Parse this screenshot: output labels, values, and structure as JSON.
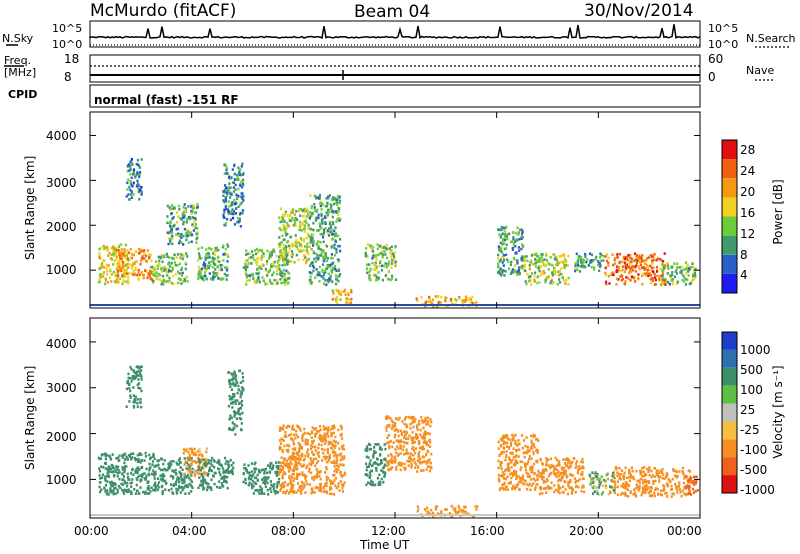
{
  "header": {
    "station": "McMurdo (fitACF)",
    "beam": "Beam 04",
    "date": "30/Nov/2014"
  },
  "noise_panel": {
    "left_label": "N.Sky",
    "right_label": "N.Search",
    "ticks_left": [
      "10^5",
      "10^0"
    ],
    "ticks_right": [
      "10^5",
      "10^0"
    ]
  },
  "freq_panel": {
    "left_label_1": "Freq.",
    "left_label_2": "[MHz]",
    "right_label": "Nave",
    "ticks_left": [
      "18",
      "8"
    ],
    "ticks_right": [
      "60",
      "0"
    ]
  },
  "cpid": {
    "label": "CPID",
    "mode": "normal (fast) -151 RF"
  },
  "x_axis": {
    "label": "Time UT",
    "ticks": [
      "00:00",
      "04:00",
      "08:00",
      "12:00",
      "16:00",
      "20:00",
      "00:00"
    ]
  },
  "power_panel": {
    "ylabel": "Slant Range [km]",
    "yticks": [
      "1000",
      "2000",
      "3000",
      "4000"
    ],
    "colorbar_label": "Power [dB]",
    "colorbar_ticks": [
      "4",
      "8",
      "12",
      "16",
      "20",
      "24",
      "28"
    ],
    "colors": [
      "#1c1cf0",
      "#2a5fc8",
      "#3f9a6e",
      "#6ccd3a",
      "#f0d020",
      "#f59a10",
      "#f06010",
      "#e01010"
    ]
  },
  "velocity_panel": {
    "ylabel": "Slant Range [km]",
    "yticks": [
      "1000",
      "2000",
      "3000",
      "4000"
    ],
    "colorbar_label": "Velocity [m s⁻¹]",
    "colorbar_ticks": [
      "1000",
      "500",
      "100",
      "25",
      "-25",
      "-100",
      "-500",
      "-1000"
    ],
    "colors": [
      "#1e3ec8",
      "#2e6fb0",
      "#3d8f6a",
      "#5cc040",
      "#c0c0c0",
      "#f5c040",
      "#f59020",
      "#f06020",
      "#e01010"
    ]
  },
  "chart_data": [
    {
      "type": "heatmap",
      "title": "",
      "xlabel": "Time UT",
      "ylabel": "Slant Range [km]",
      "xlim": [
        "00:00",
        "24:00"
      ],
      "ylim": [
        180,
        4500
      ],
      "colorbar": {
        "label": "Power [dB]",
        "range": [
          3,
          30
        ]
      },
      "patches": [
        {
          "t0": 0.3,
          "t1": 1.5,
          "r0": 700,
          "r1": 1600,
          "v": 18
        },
        {
          "t0": 1.0,
          "t1": 2.4,
          "r0": 800,
          "r1": 1500,
          "v": 22
        },
        {
          "t0": 1.4,
          "t1": 2.0,
          "r0": 2600,
          "r1": 3500,
          "v": 10
        },
        {
          "t0": 2.4,
          "t1": 3.8,
          "r0": 700,
          "r1": 1400,
          "v": 14
        },
        {
          "t0": 3.0,
          "t1": 4.2,
          "r0": 1600,
          "r1": 2500,
          "v": 12
        },
        {
          "t0": 4.2,
          "t1": 5.4,
          "r0": 800,
          "r1": 1600,
          "v": 12
        },
        {
          "t0": 5.2,
          "t1": 6.0,
          "r0": 2000,
          "r1": 3400,
          "v": 10
        },
        {
          "t0": 6.0,
          "t1": 7.8,
          "r0": 700,
          "r1": 1500,
          "v": 14
        },
        {
          "t0": 7.4,
          "t1": 8.6,
          "r0": 1200,
          "r1": 2400,
          "v": 16
        },
        {
          "t0": 8.6,
          "t1": 9.8,
          "r0": 700,
          "r1": 2700,
          "v": 12
        },
        {
          "t0": 9.5,
          "t1": 10.3,
          "r0": 250,
          "r1": 600,
          "v": 20
        },
        {
          "t0": 10.8,
          "t1": 12.0,
          "r0": 800,
          "r1": 1600,
          "v": 14
        },
        {
          "t0": 12.8,
          "t1": 15.2,
          "r0": 220,
          "r1": 450,
          "v": 20
        },
        {
          "t0": 16.0,
          "t1": 17.0,
          "r0": 900,
          "r1": 2000,
          "v": 12
        },
        {
          "t0": 17.0,
          "t1": 18.8,
          "r0": 700,
          "r1": 1400,
          "v": 16
        },
        {
          "t0": 19.0,
          "t1": 20.2,
          "r0": 1000,
          "r1": 1400,
          "v": 12
        },
        {
          "t0": 20.2,
          "t1": 22.6,
          "r0": 700,
          "r1": 1400,
          "v": 24
        },
        {
          "t0": 22.4,
          "t1": 23.8,
          "r0": 700,
          "r1": 1200,
          "v": 14
        }
      ]
    },
    {
      "type": "heatmap",
      "title": "",
      "xlabel": "Time UT",
      "ylabel": "Slant Range [km]",
      "xlim": [
        "00:00",
        "24:00"
      ],
      "ylim": [
        180,
        4500
      ],
      "colorbar": {
        "label": "Velocity [m s⁻¹]",
        "range": [
          -1000,
          1000
        ]
      },
      "patches": [
        {
          "t0": 0.3,
          "t1": 2.5,
          "r0": 700,
          "r1": 1600,
          "v": 300
        },
        {
          "t0": 1.4,
          "t1": 2.0,
          "r0": 2600,
          "r1": 3500,
          "v": 300
        },
        {
          "t0": 2.5,
          "t1": 4.0,
          "r0": 700,
          "r1": 1500,
          "v": 300
        },
        {
          "t0": 3.6,
          "t1": 4.6,
          "r0": 1100,
          "r1": 1700,
          "v": -200
        },
        {
          "t0": 4.2,
          "t1": 5.6,
          "r0": 800,
          "r1": 1500,
          "v": 300
        },
        {
          "t0": 5.4,
          "t1": 6.0,
          "r0": 2000,
          "r1": 3400,
          "v": 300
        },
        {
          "t0": 6.0,
          "t1": 7.4,
          "r0": 700,
          "r1": 1400,
          "v": 300
        },
        {
          "t0": 7.4,
          "t1": 10.0,
          "r0": 700,
          "r1": 2200,
          "v": -300
        },
        {
          "t0": 10.8,
          "t1": 11.6,
          "r0": 900,
          "r1": 1800,
          "v": 300
        },
        {
          "t0": 11.6,
          "t1": 13.4,
          "r0": 1200,
          "r1": 2400,
          "v": -300
        },
        {
          "t0": 12.8,
          "t1": 15.2,
          "r0": 220,
          "r1": 450,
          "v": -200
        },
        {
          "t0": 16.0,
          "t1": 17.6,
          "r0": 800,
          "r1": 2000,
          "v": -300
        },
        {
          "t0": 17.6,
          "t1": 19.4,
          "r0": 700,
          "r1": 1500,
          "v": -300
        },
        {
          "t0": 19.6,
          "t1": 20.6,
          "r0": 700,
          "r1": 1200,
          "v": 30
        },
        {
          "t0": 20.6,
          "t1": 23.6,
          "r0": 650,
          "r1": 1300,
          "v": -300
        },
        {
          "t0": 23.4,
          "t1": 23.9,
          "r0": 700,
          "r1": 1100,
          "v": -700
        }
      ]
    }
  ]
}
